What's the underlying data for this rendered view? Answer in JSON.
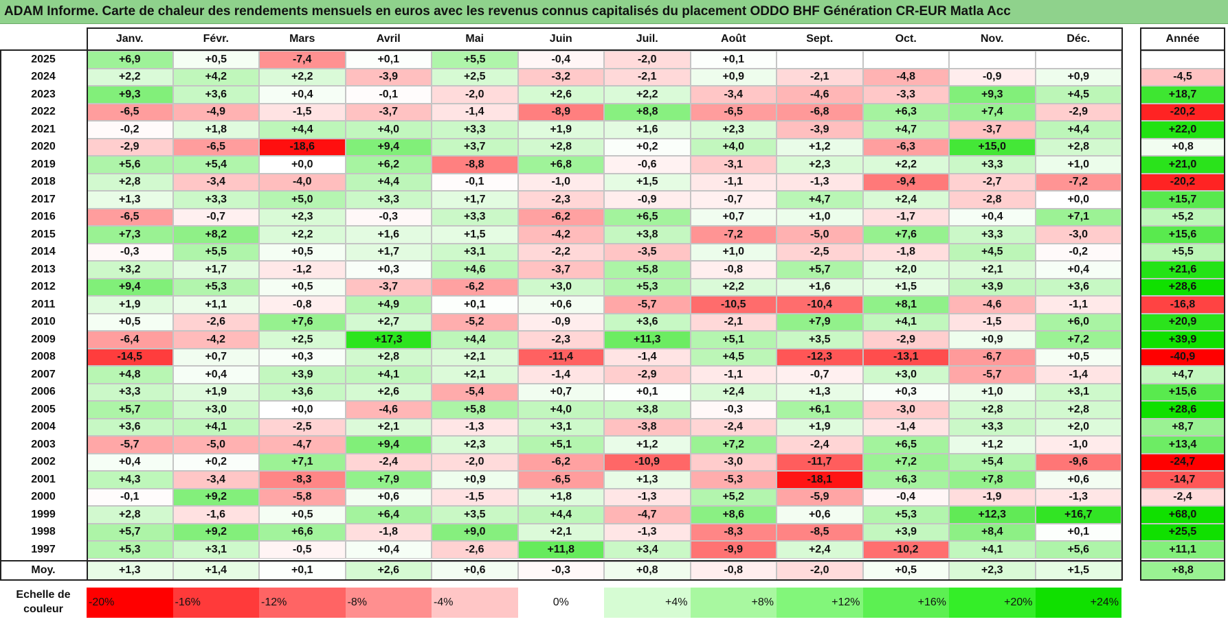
{
  "title": "ADAM Informe. Carte de chaleur des rendements mensuels en euros avec les revenus connus capitalisés du placement ODDO BHF Génération CR-EUR Matla Acc",
  "chart_data": {
    "type": "heatmap",
    "columns": [
      "Janv.",
      "Févr.",
      "Mars",
      "Avril",
      "Mai",
      "Juin",
      "Juil.",
      "Août",
      "Sept.",
      "Oct.",
      "Nov.",
      "Déc."
    ],
    "year_column_label": "Année",
    "rows": [
      {
        "year": "2025",
        "values": [
          "+6,9",
          "+0,5",
          "-7,4",
          "+0,1",
          "+5,5",
          "-0,4",
          "-2,0",
          "+0,1",
          "",
          "",
          "",
          ""
        ],
        "annual": ""
      },
      {
        "year": "2024",
        "values": [
          "+2,2",
          "+4,2",
          "+2,2",
          "-3,9",
          "+2,5",
          "-3,2",
          "-2,1",
          "+0,9",
          "-2,1",
          "-4,8",
          "-0,9",
          "+0,9"
        ],
        "annual": "-4,5"
      },
      {
        "year": "2023",
        "values": [
          "+9,3",
          "+3,6",
          "+0,4",
          "-0,1",
          "-2,0",
          "+2,6",
          "+2,2",
          "-3,4",
          "-4,6",
          "-3,3",
          "+9,3",
          "+4,5"
        ],
        "annual": "+18,7"
      },
      {
        "year": "2022",
        "values": [
          "-6,5",
          "-4,9",
          "-1,5",
          "-3,7",
          "-1,4",
          "-8,9",
          "+8,8",
          "-6,5",
          "-6,8",
          "+6,3",
          "+7,4",
          "-2,9"
        ],
        "annual": "-20,2"
      },
      {
        "year": "2021",
        "values": [
          "-0,2",
          "+1,8",
          "+4,4",
          "+4,0",
          "+3,3",
          "+1,9",
          "+1,6",
          "+2,3",
          "-3,9",
          "+4,7",
          "-3,7",
          "+4,4"
        ],
        "annual": "+22,0"
      },
      {
        "year": "2020",
        "values": [
          "-2,9",
          "-6,5",
          "-18,6",
          "+9,4",
          "+3,7",
          "+2,8",
          "+0,2",
          "+4,0",
          "+1,2",
          "-6,3",
          "+15,0",
          "+2,8"
        ],
        "annual": "+0,8"
      },
      {
        "year": "2019",
        "values": [
          "+5,6",
          "+5,4",
          "+0,0",
          "+6,2",
          "-8,8",
          "+6,8",
          "-0,6",
          "-3,1",
          "+2,3",
          "+2,2",
          "+3,3",
          "+1,0"
        ],
        "annual": "+21,0"
      },
      {
        "year": "2018",
        "values": [
          "+2,8",
          "-3,4",
          "-4,0",
          "+4,4",
          "-0,1",
          "-1,0",
          "+1,5",
          "-1,1",
          "-1,3",
          "-9,4",
          "-2,7",
          "-7,2"
        ],
        "annual": "-20,2"
      },
      {
        "year": "2017",
        "values": [
          "+1,3",
          "+3,3",
          "+5,0",
          "+3,3",
          "+1,7",
          "-2,3",
          "-0,9",
          "-0,7",
          "+4,7",
          "+2,4",
          "-2,8",
          "+0,0"
        ],
        "annual": "+15,7"
      },
      {
        "year": "2016",
        "values": [
          "-6,5",
          "-0,7",
          "+2,3",
          "-0,3",
          "+3,3",
          "-6,2",
          "+6,5",
          "+0,7",
          "+1,0",
          "-1,7",
          "+0,4",
          "+7,1"
        ],
        "annual": "+5,2"
      },
      {
        "year": "2015",
        "values": [
          "+7,3",
          "+8,2",
          "+2,2",
          "+1,6",
          "+1,5",
          "-4,2",
          "+3,8",
          "-7,2",
          "-5,0",
          "+7,6",
          "+3,3",
          "-3,0"
        ],
        "annual": "+15,6"
      },
      {
        "year": "2014",
        "values": [
          "-0,3",
          "+5,5",
          "+0,5",
          "+1,7",
          "+3,1",
          "-2,2",
          "-3,5",
          "+1,0",
          "-2,5",
          "-1,8",
          "+4,5",
          "-0,2"
        ],
        "annual": "+5,5"
      },
      {
        "year": "2013",
        "values": [
          "+3,2",
          "+1,7",
          "-1,2",
          "+0,3",
          "+4,6",
          "-3,7",
          "+5,8",
          "-0,8",
          "+5,7",
          "+2,0",
          "+2,1",
          "+0,4"
        ],
        "annual": "+21,6"
      },
      {
        "year": "2012",
        "values": [
          "+9,4",
          "+5,3",
          "+0,5",
          "-3,7",
          "-6,2",
          "+3,0",
          "+5,3",
          "+2,2",
          "+1,6",
          "+1,5",
          "+3,9",
          "+3,6"
        ],
        "annual": "+28,6"
      },
      {
        "year": "2011",
        "values": [
          "+1,9",
          "+1,1",
          "-0,8",
          "+4,9",
          "+0,1",
          "+0,6",
          "-5,7",
          "-10,5",
          "-10,4",
          "+8,1",
          "-4,6",
          "-1,1"
        ],
        "annual": "-16,8"
      },
      {
        "year": "2010",
        "values": [
          "+0,5",
          "-2,6",
          "+7,6",
          "+2,7",
          "-5,2",
          "-0,9",
          "+3,6",
          "-2,1",
          "+7,9",
          "+4,1",
          "-1,5",
          "+6,0"
        ],
        "annual": "+20,9"
      },
      {
        "year": "2009",
        "values": [
          "-6,4",
          "-4,2",
          "+2,5",
          "+17,3",
          "+4,4",
          "-2,3",
          "+11,3",
          "+5,1",
          "+3,5",
          "-2,9",
          "+0,9",
          "+7,2"
        ],
        "annual": "+39,9"
      },
      {
        "year": "2008",
        "values": [
          "-14,5",
          "+0,7",
          "+0,3",
          "+2,8",
          "+2,1",
          "-11,4",
          "-1,4",
          "+4,5",
          "-12,3",
          "-13,1",
          "-6,7",
          "+0,5"
        ],
        "annual": "-40,9"
      },
      {
        "year": "2007",
        "values": [
          "+4,8",
          "+0,4",
          "+3,9",
          "+4,1",
          "+2,1",
          "-1,4",
          "-2,9",
          "-1,1",
          "-0,7",
          "+3,0",
          "-5,7",
          "-1,4"
        ],
        "annual": "+4,7"
      },
      {
        "year": "2006",
        "values": [
          "+3,3",
          "+1,9",
          "+3,6",
          "+2,6",
          "-5,4",
          "+0,7",
          "+0,1",
          "+2,4",
          "+1,3",
          "+0,3",
          "+1,0",
          "+3,1"
        ],
        "annual": "+15,6"
      },
      {
        "year": "2005",
        "values": [
          "+5,7",
          "+3,0",
          "+0,0",
          "-4,6",
          "+5,8",
          "+4,0",
          "+3,8",
          "-0,3",
          "+6,1",
          "-3,0",
          "+2,8",
          "+2,8"
        ],
        "annual": "+28,6"
      },
      {
        "year": "2004",
        "values": [
          "+3,6",
          "+4,1",
          "-2,5",
          "+2,1",
          "-1,3",
          "+3,1",
          "-3,8",
          "-2,4",
          "+1,9",
          "-1,4",
          "+3,3",
          "+2,0"
        ],
        "annual": "+8,7"
      },
      {
        "year": "2003",
        "values": [
          "-5,7",
          "-5,0",
          "-4,7",
          "+9,4",
          "+2,3",
          "+5,1",
          "+1,2",
          "+7,2",
          "-2,4",
          "+6,5",
          "+1,2",
          "-1,0"
        ],
        "annual": "+13,4"
      },
      {
        "year": "2002",
        "values": [
          "+0,4",
          "+0,2",
          "+7,1",
          "-2,4",
          "-2,0",
          "-6,2",
          "-10,9",
          "-3,0",
          "-11,7",
          "+7,2",
          "+5,4",
          "-9,6"
        ],
        "annual": "-24,7"
      },
      {
        "year": "2001",
        "values": [
          "+4,3",
          "-3,4",
          "-8,3",
          "+7,9",
          "+0,9",
          "-6,5",
          "+1,3",
          "-5,3",
          "-18,1",
          "+6,3",
          "+7,8",
          "+0,6"
        ],
        "annual": "-14,7"
      },
      {
        "year": "2000",
        "values": [
          "-0,1",
          "+9,2",
          "-5,8",
          "+0,6",
          "-1,5",
          "+1,8",
          "-1,3",
          "+5,2",
          "-5,9",
          "-0,4",
          "-1,9",
          "-1,3"
        ],
        "annual": "-2,4"
      },
      {
        "year": "1999",
        "values": [
          "+2,8",
          "-1,6",
          "+0,5",
          "+6,4",
          "+3,5",
          "+4,4",
          "-4,7",
          "+8,6",
          "+0,6",
          "+5,3",
          "+12,3",
          "+16,7"
        ],
        "annual": "+68,0"
      },
      {
        "year": "1998",
        "values": [
          "+5,7",
          "+9,2",
          "+6,6",
          "-1,8",
          "+9,0",
          "+2,1",
          "-1,3",
          "-8,3",
          "-8,5",
          "+3,9",
          "+8,4",
          "+0,1"
        ],
        "annual": "+25,5"
      },
      {
        "year": "1997",
        "values": [
          "+5,3",
          "+3,1",
          "-0,5",
          "+0,4",
          "-2,6",
          "+11,8",
          "+3,4",
          "-9,9",
          "+2,4",
          "-10,2",
          "+4,1",
          "+5,6"
        ],
        "annual": "+11,1"
      }
    ],
    "average": {
      "label": "Moy.",
      "values": [
        "+1,3",
        "+1,4",
        "+0,1",
        "+2,6",
        "+0,6",
        "-0,3",
        "+0,8",
        "-0,8",
        "-2,0",
        "+0,5",
        "+2,3",
        "+1,5"
      ],
      "annual": "+8,8"
    },
    "color_scale": {
      "label_line1": "Echelle de",
      "label_line2": "couleur",
      "stops": [
        {
          "label": "-20%",
          "value": -20,
          "color": "#ff0000"
        },
        {
          "label": "-16%",
          "value": -16,
          "color": "#ff3a3a"
        },
        {
          "label": "-12%",
          "value": -12,
          "color": "#ff6464"
        },
        {
          "label": "-8%",
          "value": -8,
          "color": "#ff8f8f"
        },
        {
          "label": "-4%",
          "value": -4,
          "color": "#ffc6c6"
        },
        {
          "label": "0%",
          "value": 0,
          "color": "#ffffff"
        },
        {
          "label": "+4%",
          "value": 4,
          "color": "#d6fcd3"
        },
        {
          "label": "+8%",
          "value": 8,
          "color": "#a8f8a0"
        },
        {
          "label": "+12%",
          "value": 12,
          "color": "#82f67a"
        },
        {
          "label": "+16%",
          "value": 16,
          "color": "#5cf052"
        },
        {
          "label": "+20%",
          "value": 20,
          "color": "#34ee28"
        },
        {
          "label": "+24%",
          "value": 24,
          "color": "#10e000"
        }
      ]
    }
  },
  "colors": {
    "title_bar": "#8fd28c",
    "negative_max": "#ff0000",
    "positive_max": "#10e000",
    "neutral": "#ffffff"
  }
}
